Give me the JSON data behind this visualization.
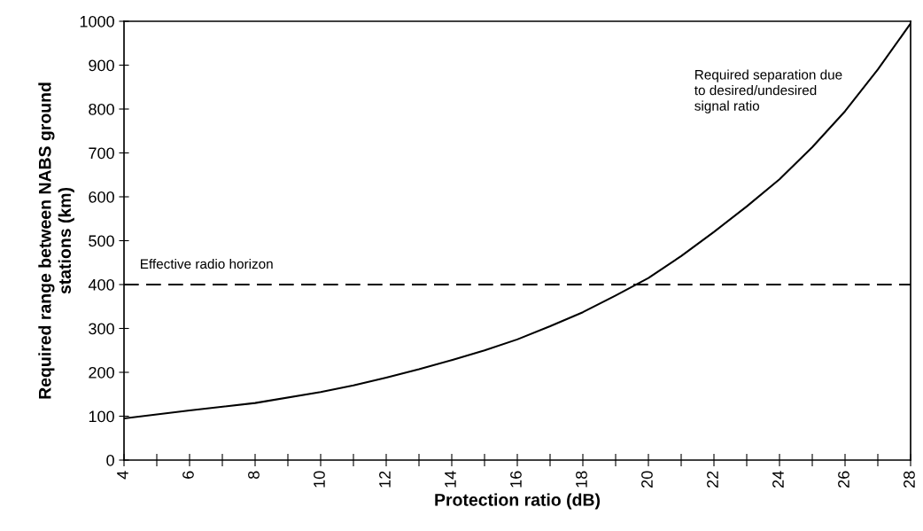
{
  "chart_data": {
    "type": "line",
    "xlabel": "Protection ratio (dB)",
    "ylabel": "Required range between NABS ground\nstations (km)",
    "x": [
      4,
      6,
      8,
      10,
      11,
      12,
      13,
      14,
      15,
      16,
      17,
      18,
      19,
      20,
      21,
      22,
      23,
      24,
      25,
      26,
      27,
      28
    ],
    "series": [
      {
        "color": "#000000",
        "values": [
          95,
          113,
          130,
          155,
          170,
          188,
          207,
          228,
          250,
          275,
          305,
          337,
          375,
          415,
          465,
          520,
          578,
          640,
          713,
          795,
          890,
          995
        ]
      }
    ],
    "xlim": [
      4,
      28
    ],
    "xticks": [
      4,
      {
        "value": 5,
        "label": null
      },
      6,
      {
        "value": 7,
        "label": null
      },
      8,
      {
        "value": 9,
        "label": null
      },
      10,
      {
        "value": 11,
        "label": null
      },
      12,
      {
        "value": 13,
        "label": null
      },
      14,
      {
        "value": 15,
        "label": null
      },
      16,
      {
        "value": 17,
        "label": null
      },
      18,
      {
        "value": 19,
        "label": null
      },
      20,
      {
        "value": 21,
        "label": null
      },
      22,
      {
        "value": 23,
        "label": null
      },
      24,
      {
        "value": 25,
        "label": null
      },
      26,
      {
        "value": 27,
        "label": null
      },
      28
    ],
    "ylim": [
      0,
      1000
    ],
    "yticks": [
      0,
      100,
      200,
      300,
      400,
      500,
      600,
      700,
      800,
      900,
      1000
    ],
    "ref_lines": [
      {
        "axis": "y",
        "value": 400,
        "label": "Effective radio horizon",
        "color": "#000000",
        "line_style": "dashed"
      }
    ],
    "annotations": [
      "Required separation due\nto desired/undesired\nsignal ratio"
    ],
    "grid": false,
    "legend": false,
    "marker": "none",
    "line_style": "solid"
  }
}
